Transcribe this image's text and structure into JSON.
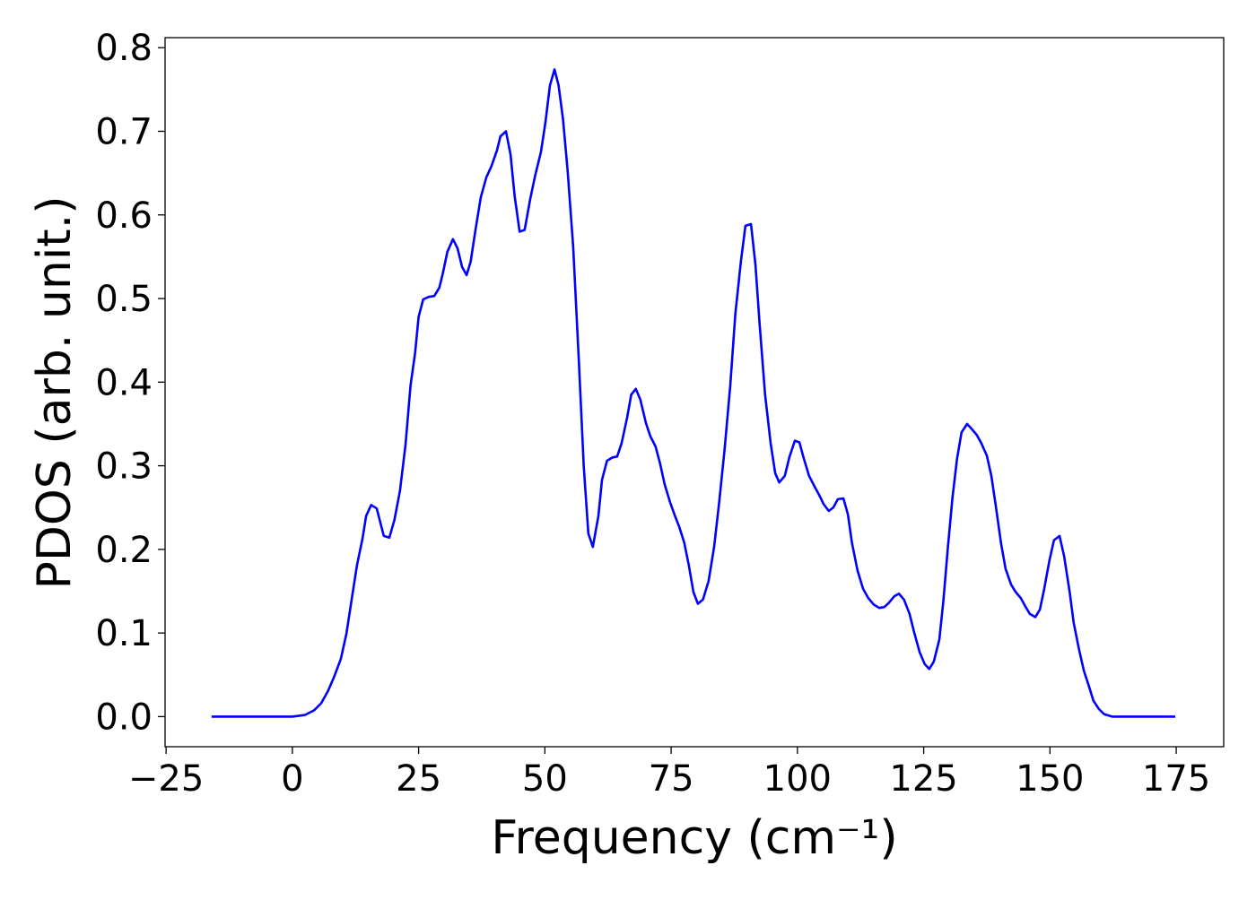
{
  "chart_data": {
    "type": "line",
    "xlabel": "Frequency (cm⁻¹)",
    "ylabel": "PDOS (arb. unit.)",
    "xlim": [
      -25.2,
      184.4
    ],
    "ylim": [
      -0.036,
      0.812
    ],
    "xticks": [
      {
        "value": -25,
        "label": "−25"
      },
      0,
      25,
      50,
      75,
      100,
      125,
      150,
      175
    ],
    "yticks": [
      {
        "value": 0,
        "label": "0.0"
      },
      0.1,
      0.2,
      0.3,
      0.4,
      0.5,
      0.6,
      0.7,
      0.8
    ],
    "series": [
      {
        "color": "#0000ff",
        "x": [
          -16,
          0,
          2.5,
          4.3,
          5.7,
          7.1,
          8.3,
          9.6,
          10.7,
          11.7,
          12.8,
          13.9,
          14.6,
          15.6,
          16.7,
          18.1,
          19.2,
          20.2,
          21.3,
          22.4,
          23.4,
          24.3,
          25,
          25.9,
          27,
          28.1,
          29.1,
          29.8,
          30.7,
          31.8,
          32.7,
          33.6,
          34.5,
          35.3,
          36.2,
          37.3,
          38.4,
          39.4,
          40.5,
          41.2,
          42.3,
          43.2,
          44.0,
          45.0,
          46,
          47.1,
          48.1,
          49.2,
          50.1,
          51,
          51.9,
          52.7,
          53.6,
          54.5,
          55.6,
          56.7,
          57.7,
          58.6,
          59.5,
          60.6,
          61.3,
          62.3,
          63.4,
          64.3,
          65.2,
          66.3,
          67.1,
          68,
          68.9,
          70,
          70.9,
          71.9,
          72.8,
          73.7,
          74.8,
          75.7,
          76.6,
          77.6,
          78.5,
          79.4,
          80.3,
          81.3,
          82.4,
          83.5,
          84.5,
          85.6,
          86.7,
          87.7,
          88.8,
          89.7,
          90.8,
          91.7,
          92.5,
          93.6,
          94.7,
          95.6,
          96.4,
          97.5,
          98.4,
          99.5,
          100.4,
          101.2,
          102.3,
          103.4,
          104.3,
          105.2,
          106.2,
          107.1,
          108,
          109.1,
          110,
          110.8,
          111.9,
          113,
          114,
          115.1,
          116.2,
          117.2,
          118.1,
          119.2,
          120.1,
          121.1,
          122.2,
          123.1,
          124.2,
          125.2,
          126.1,
          127,
          128.1,
          128.9,
          129.8,
          130.7,
          131.6,
          132.5,
          133.6,
          134.5,
          135.5,
          136.4,
          137.5,
          138.4,
          139.3,
          140.3,
          141.2,
          142.3,
          143.2,
          144.2,
          145.1,
          146,
          147.1,
          148,
          148.8,
          149.9,
          150.8,
          151.9,
          152.8,
          153.9,
          154.7,
          155.8,
          156.7,
          157.8,
          158.6,
          159.7,
          160.7,
          162.3,
          174.8
        ],
        "values": [
          0,
          0,
          0.002,
          0.0075,
          0.016,
          0.031,
          0.048,
          0.069,
          0.099,
          0.138,
          0.181,
          0.213,
          0.24,
          0.253,
          0.249,
          0.216,
          0.214,
          0.235,
          0.27,
          0.325,
          0.396,
          0.435,
          0.478,
          0.499,
          0.502,
          0.503,
          0.513,
          0.53,
          0.556,
          0.571,
          0.56,
          0.538,
          0.528,
          0.544,
          0.58,
          0.621,
          0.645,
          0.658,
          0.677,
          0.694,
          0.7,
          0.672,
          0.623,
          0.58,
          0.582,
          0.619,
          0.648,
          0.675,
          0.71,
          0.755,
          0.774,
          0.755,
          0.714,
          0.653,
          0.562,
          0.428,
          0.299,
          0.219,
          0.203,
          0.24,
          0.283,
          0.306,
          0.31,
          0.311,
          0.327,
          0.358,
          0.385,
          0.392,
          0.379,
          0.351,
          0.335,
          0.323,
          0.303,
          0.278,
          0.256,
          0.241,
          0.227,
          0.208,
          0.181,
          0.149,
          0.135,
          0.14,
          0.162,
          0.203,
          0.256,
          0.321,
          0.396,
          0.481,
          0.544,
          0.587,
          0.589,
          0.54,
          0.471,
          0.385,
          0.327,
          0.291,
          0.28,
          0.288,
          0.31,
          0.33,
          0.328,
          0.31,
          0.288,
          0.275,
          0.265,
          0.254,
          0.246,
          0.25,
          0.26,
          0.261,
          0.242,
          0.208,
          0.175,
          0.153,
          0.142,
          0.134,
          0.13,
          0.131,
          0.136,
          0.144,
          0.147,
          0.14,
          0.123,
          0.101,
          0.077,
          0.063,
          0.057,
          0.066,
          0.092,
          0.138,
          0.203,
          0.262,
          0.308,
          0.34,
          0.35,
          0.344,
          0.337,
          0.327,
          0.312,
          0.288,
          0.251,
          0.208,
          0.177,
          0.158,
          0.149,
          0.142,
          0.132,
          0.123,
          0.119,
          0.128,
          0.151,
          0.187,
          0.211,
          0.216,
          0.192,
          0.149,
          0.112,
          0.079,
          0.055,
          0.035,
          0.019,
          0.009,
          0.003,
          0,
          0
        ]
      }
    ]
  }
}
